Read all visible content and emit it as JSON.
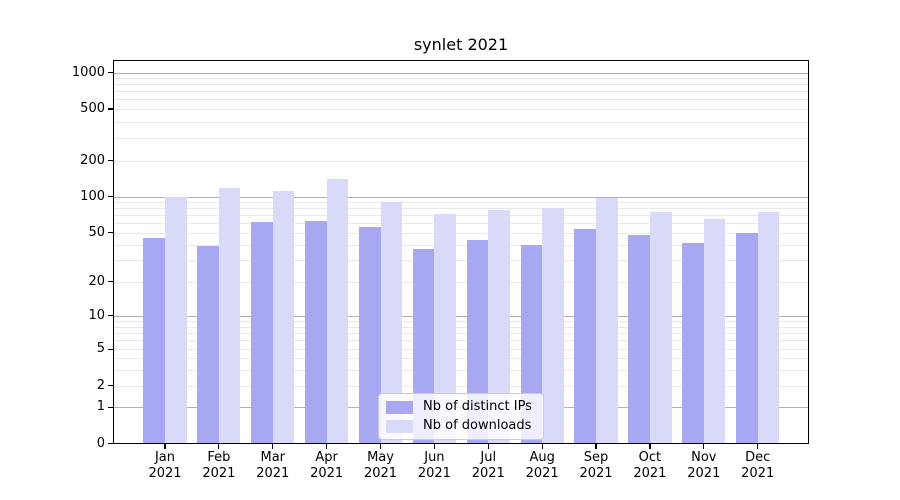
{
  "title": "synlet 2021",
  "chart_data": {
    "type": "bar",
    "title": "synlet 2021",
    "categories": [
      "Jan",
      "Feb",
      "Mar",
      "Apr",
      "May",
      "Jun",
      "Jul",
      "Aug",
      "Sep",
      "Oct",
      "Nov",
      "Dec"
    ],
    "category_year": "2021",
    "series": [
      {
        "name": "Nb of distinct IPs",
        "color": "#a8a8f2",
        "values": [
          45,
          39,
          62,
          63,
          56,
          37,
          44,
          40,
          54,
          48,
          41,
          50
        ]
      },
      {
        "name": "Nb of downloads",
        "color": "#d9d9f8",
        "values": [
          100,
          118,
          112,
          140,
          90,
          72,
          78,
          81,
          97,
          75,
          65,
          75
        ]
      }
    ],
    "xlabel": "",
    "ylabel": "",
    "yscale": "symlog",
    "y_ticks": [
      0,
      1,
      2,
      5,
      10,
      20,
      50,
      100,
      200,
      500,
      1000
    ],
    "y_tick_labels": [
      "0",
      "1",
      "2",
      "5",
      "10",
      "20",
      "50",
      "100",
      "200",
      "500",
      "1000"
    ],
    "ylim": [
      0,
      1300
    ],
    "grid": "horizontal major and minor",
    "legend_position": "lower center inside",
    "colors": {
      "major_grid": "#b0b0b0",
      "minor_grid": "#e8e8e8",
      "axis": "#000000",
      "background": "#ffffff"
    }
  }
}
